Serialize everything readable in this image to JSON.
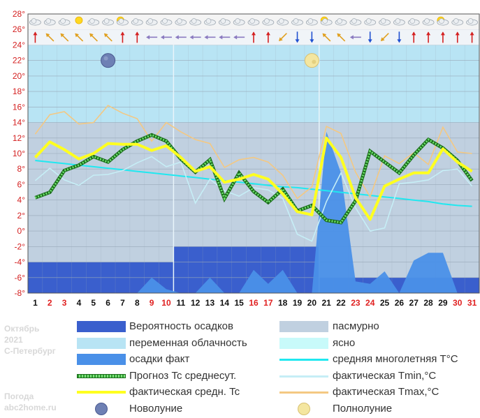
{
  "chart_data": {
    "type": "line",
    "x": [
      1,
      2,
      3,
      4,
      5,
      6,
      7,
      8,
      9,
      10,
      11,
      12,
      13,
      14,
      15,
      16,
      17,
      18,
      19,
      20,
      21,
      22,
      23,
      24,
      25,
      26,
      27,
      28,
      29,
      30,
      31
    ],
    "x_tick_labels": [
      "1",
      "2",
      "3",
      "4",
      "5",
      "6",
      "7",
      "8",
      "9",
      "10",
      "11",
      "12",
      "13",
      "14",
      "15",
      "16",
      "17",
      "18",
      "19",
      "20",
      "21",
      "22",
      "23",
      "24",
      "25",
      "26",
      "27",
      "28",
      "29",
      "30",
      "31"
    ],
    "weekend_days": [
      2,
      3,
      9,
      10,
      16,
      17,
      23,
      24,
      30,
      31
    ],
    "ylim": [
      -8,
      28
    ],
    "y_ticks": [
      28,
      26,
      24,
      22,
      20,
      18,
      16,
      14,
      12,
      10,
      8,
      6,
      4,
      2,
      0,
      -2,
      -4,
      -6,
      -8
    ],
    "y_tick_labels": [
      "28°",
      "26°",
      "24°",
      "22°",
      "20°",
      "18°",
      "16°",
      "14°",
      "12°",
      "10°",
      "8°",
      "6°",
      "4°",
      "2°",
      "0°",
      "-2°",
      "-4°",
      "-6°",
      "-8°"
    ],
    "cloud_bands": [
      {
        "from_day": 0.5,
        "to_day": 10.5,
        "clear_from": 24,
        "clear_to": 14,
        "overcast_from": 14,
        "overcast_to": -4
      },
      {
        "from_day": 10.5,
        "to_day": 20.5,
        "clear_from": 24,
        "clear_to": 14,
        "overcast_from": 14,
        "overcast_to": -2
      },
      {
        "from_day": 20.5,
        "to_day": 31.5,
        "clear_from": 24,
        "clear_to": 14,
        "overcast_from": 14,
        "overcast_to": -6
      }
    ],
    "series": [
      {
        "name": "Вероятность осадков",
        "kind": "area-step",
        "color": "#3a5fcd",
        "segments": [
          {
            "from": 0.5,
            "to": 10.5,
            "level": -4
          },
          {
            "from": 10.5,
            "to": 20.5,
            "level": -2
          },
          {
            "from": 20.5,
            "to": 31.5,
            "level": -6
          }
        ]
      },
      {
        "name": "осадки факт",
        "kind": "area",
        "color": "#4a90e8",
        "values": [
          -8,
          -8,
          -8,
          -8,
          -8,
          -8,
          -8,
          -8,
          -6,
          -7.5,
          -8,
          -8,
          -6,
          -8,
          -8,
          -5,
          -6.8,
          -5,
          -8,
          -8,
          12.8,
          7.5,
          -6.5,
          -6.8,
          -5.2,
          -8,
          -3.8,
          -2.8,
          -2.8,
          -8,
          -8
        ]
      },
      {
        "name": "средняя многолетняя T°C",
        "kind": "line",
        "color": "#20e8f0",
        "values": [
          9.1,
          8.9,
          8.7,
          8.5,
          8.3,
          8.1,
          7.9,
          7.7,
          7.5,
          7.3,
          7.1,
          6.9,
          6.7,
          6.5,
          6.3,
          6.1,
          5.9,
          5.7,
          5.6,
          5.4,
          5.2,
          5.0,
          4.8,
          4.6,
          4.4,
          4.2,
          4.0,
          3.8,
          3.5,
          3.3,
          3.2
        ]
      },
      {
        "name": "фактическая Tmin,°C",
        "kind": "line",
        "color": "#c6eef6",
        "values": [
          6.5,
          8.1,
          6.6,
          5.9,
          7.2,
          7.3,
          7.8,
          8.8,
          9.6,
          8.3,
          8.9,
          3.6,
          6.7,
          5.2,
          4.5,
          5.6,
          5.3,
          4.2,
          -0.4,
          -1.3,
          3.8,
          7.5,
          3.0,
          0.0,
          0.4,
          6.1,
          6.3,
          6.6,
          7.8,
          8.0,
          5.8
        ]
      },
      {
        "name": "фактическая Tmax,°C",
        "kind": "line",
        "color": "#f4c882",
        "values": [
          12.5,
          15.0,
          15.4,
          13.8,
          14.0,
          16.2,
          15.2,
          14.5,
          11.6,
          14.0,
          12.8,
          11.8,
          11.3,
          8.2,
          9.2,
          9.5,
          8.9,
          7.2,
          4.2,
          5.7,
          13.5,
          12.6,
          7.6,
          4.4,
          9.7,
          8.7,
          10.1,
          8.6,
          13.4,
          10.2,
          10.0
        ]
      },
      {
        "name": "Прогноз Tc среднесут.",
        "kind": "line-dotted",
        "color": "#2c9a2c",
        "values": [
          4.3,
          5.0,
          7.8,
          8.5,
          9.6,
          8.9,
          10.5,
          11.6,
          12.4,
          11.6,
          9.3,
          7.6,
          9.2,
          4.2,
          7.5,
          5.1,
          3.7,
          5.4,
          2.6,
          3.3,
          1.4,
          1.1,
          3.9,
          10.3,
          8.9,
          7.5,
          9.8,
          11.8,
          10.7,
          9.1,
          6.5
        ]
      },
      {
        "name": "фактическая средн. Tc",
        "kind": "line",
        "color": "#ffff20",
        "values": [
          9.5,
          11.5,
          10.5,
          9.3,
          10.0,
          11.3,
          11.2,
          11.2,
          10.4,
          11.0,
          9.5,
          7.7,
          8.3,
          6.3,
          6.7,
          7.3,
          6.7,
          4.8,
          2.5,
          2.1,
          12.0,
          9.5,
          4.3,
          1.5,
          5.8,
          6.7,
          7.5,
          7.5,
          10.6,
          8.9,
          7.7
        ]
      }
    ],
    "daily_symbols": {
      "weather": [
        "cloudy",
        "cloudy",
        "cloudy",
        "sunny",
        "cloudy",
        "cloudy",
        "sun-cloud",
        "cloudy",
        "cloudy",
        "cloudy",
        "cloudy",
        "cloudy",
        "cloudy",
        "cloudy",
        "cloudy",
        "cloudy",
        "cloudy",
        "cloudy",
        "cloudy",
        "cloudy",
        "sun-cloud",
        "cloudy",
        "cloudy",
        "cloudy",
        "cloudy",
        "cloudy",
        "cloudy",
        "cloudy",
        "sun-cloud",
        "cloudy",
        "cloudy"
      ],
      "wind_arrows": [
        "N",
        "NW",
        "NW",
        "NW",
        "NW",
        "NW",
        "N",
        "N",
        "W",
        "W",
        "W",
        "W",
        "W",
        "W",
        "W",
        "N",
        "N",
        "SW",
        "S",
        "S",
        "NW",
        "NW",
        "W",
        "S",
        "SW",
        "S",
        "N",
        "N",
        "N",
        "N",
        "N"
      ]
    },
    "moon_phases": [
      {
        "phase": "new",
        "day": 6,
        "temp": 22
      },
      {
        "phase": "full",
        "day": 20,
        "temp": 22
      }
    ],
    "legend_placement": "bottom",
    "colors": {
      "clear": "#b8e4f4",
      "overcast": "#c0d0e0",
      "grid": "#98a8b8",
      "axis_label_red": "#d42020",
      "weekend": "#e02020",
      "weekday": "#111111"
    }
  },
  "caption": {
    "month": "Октябрь",
    "year": "2021",
    "city": "С-Петербург",
    "site_name": "Погода",
    "site_url": "abc2home.ru"
  },
  "legend": [
    {
      "label": "Вероятность осадков",
      "swatch": "block",
      "color": "#3a5fcd"
    },
    {
      "label": "пасмурно",
      "swatch": "block",
      "color": "#c0d0e0"
    },
    {
      "label": "переменная облачность",
      "swatch": "block",
      "color": "#b8e4f4"
    },
    {
      "label": "ясно",
      "swatch": "block",
      "color": "#c8fafa"
    },
    {
      "label": "осадки факт",
      "swatch": "block",
      "color": "#4a90e8"
    },
    {
      "label": "средняя многолетняя T°C",
      "swatch": "line",
      "color": "#20e8f0"
    },
    {
      "label": "Прогноз Tc среднесут.",
      "swatch": "dotted",
      "color": "#2c9a2c"
    },
    {
      "label": "фактическая Tmin,°C",
      "swatch": "line",
      "color": "#c6eef6"
    },
    {
      "label": "фактическая средн. Tc",
      "swatch": "thick",
      "color": "#ffff20"
    },
    {
      "label": "фактическая Tmax,°C",
      "swatch": "line",
      "color": "#f4c882"
    },
    {
      "label": "Новолуние",
      "swatch": "new-moon",
      "color": "#6e80b4"
    },
    {
      "label": "Полнолуние",
      "swatch": "full-moon",
      "color": "#f4e6a0"
    }
  ]
}
